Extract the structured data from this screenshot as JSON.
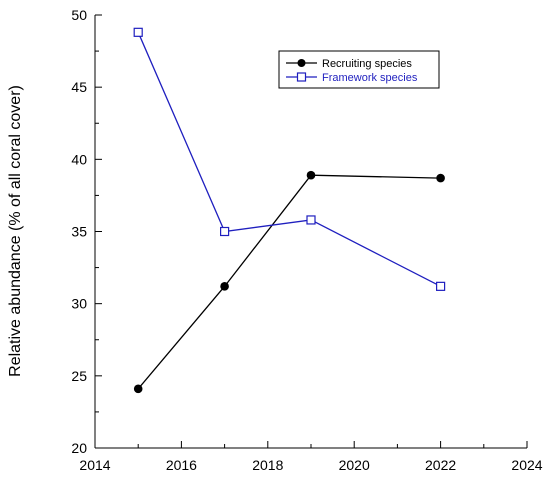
{
  "chart_data": {
    "type": "line",
    "xlabel": "",
    "ylabel": "Relative abundance (% of all coral cover)",
    "xlim": [
      2014,
      2024
    ],
    "ylim": [
      20,
      50
    ],
    "xticks": [
      2014,
      2016,
      2018,
      2020,
      2022,
      2024
    ],
    "yticks": [
      20,
      25,
      30,
      35,
      40,
      45,
      50
    ],
    "grid": false,
    "legend_position": "top-right",
    "series": [
      {
        "name": "Recruiting species",
        "color": "#000000",
        "marker": "filled-circle",
        "x": [
          2015,
          2017,
          2019,
          2022
        ],
        "y": [
          24.1,
          31.2,
          38.9,
          38.7
        ]
      },
      {
        "name": "Framework species",
        "color": "#1f1fbf",
        "marker": "open-square",
        "x": [
          2015,
          2017,
          2019,
          2022
        ],
        "y": [
          48.8,
          35.0,
          35.8,
          31.2
        ]
      }
    ]
  }
}
